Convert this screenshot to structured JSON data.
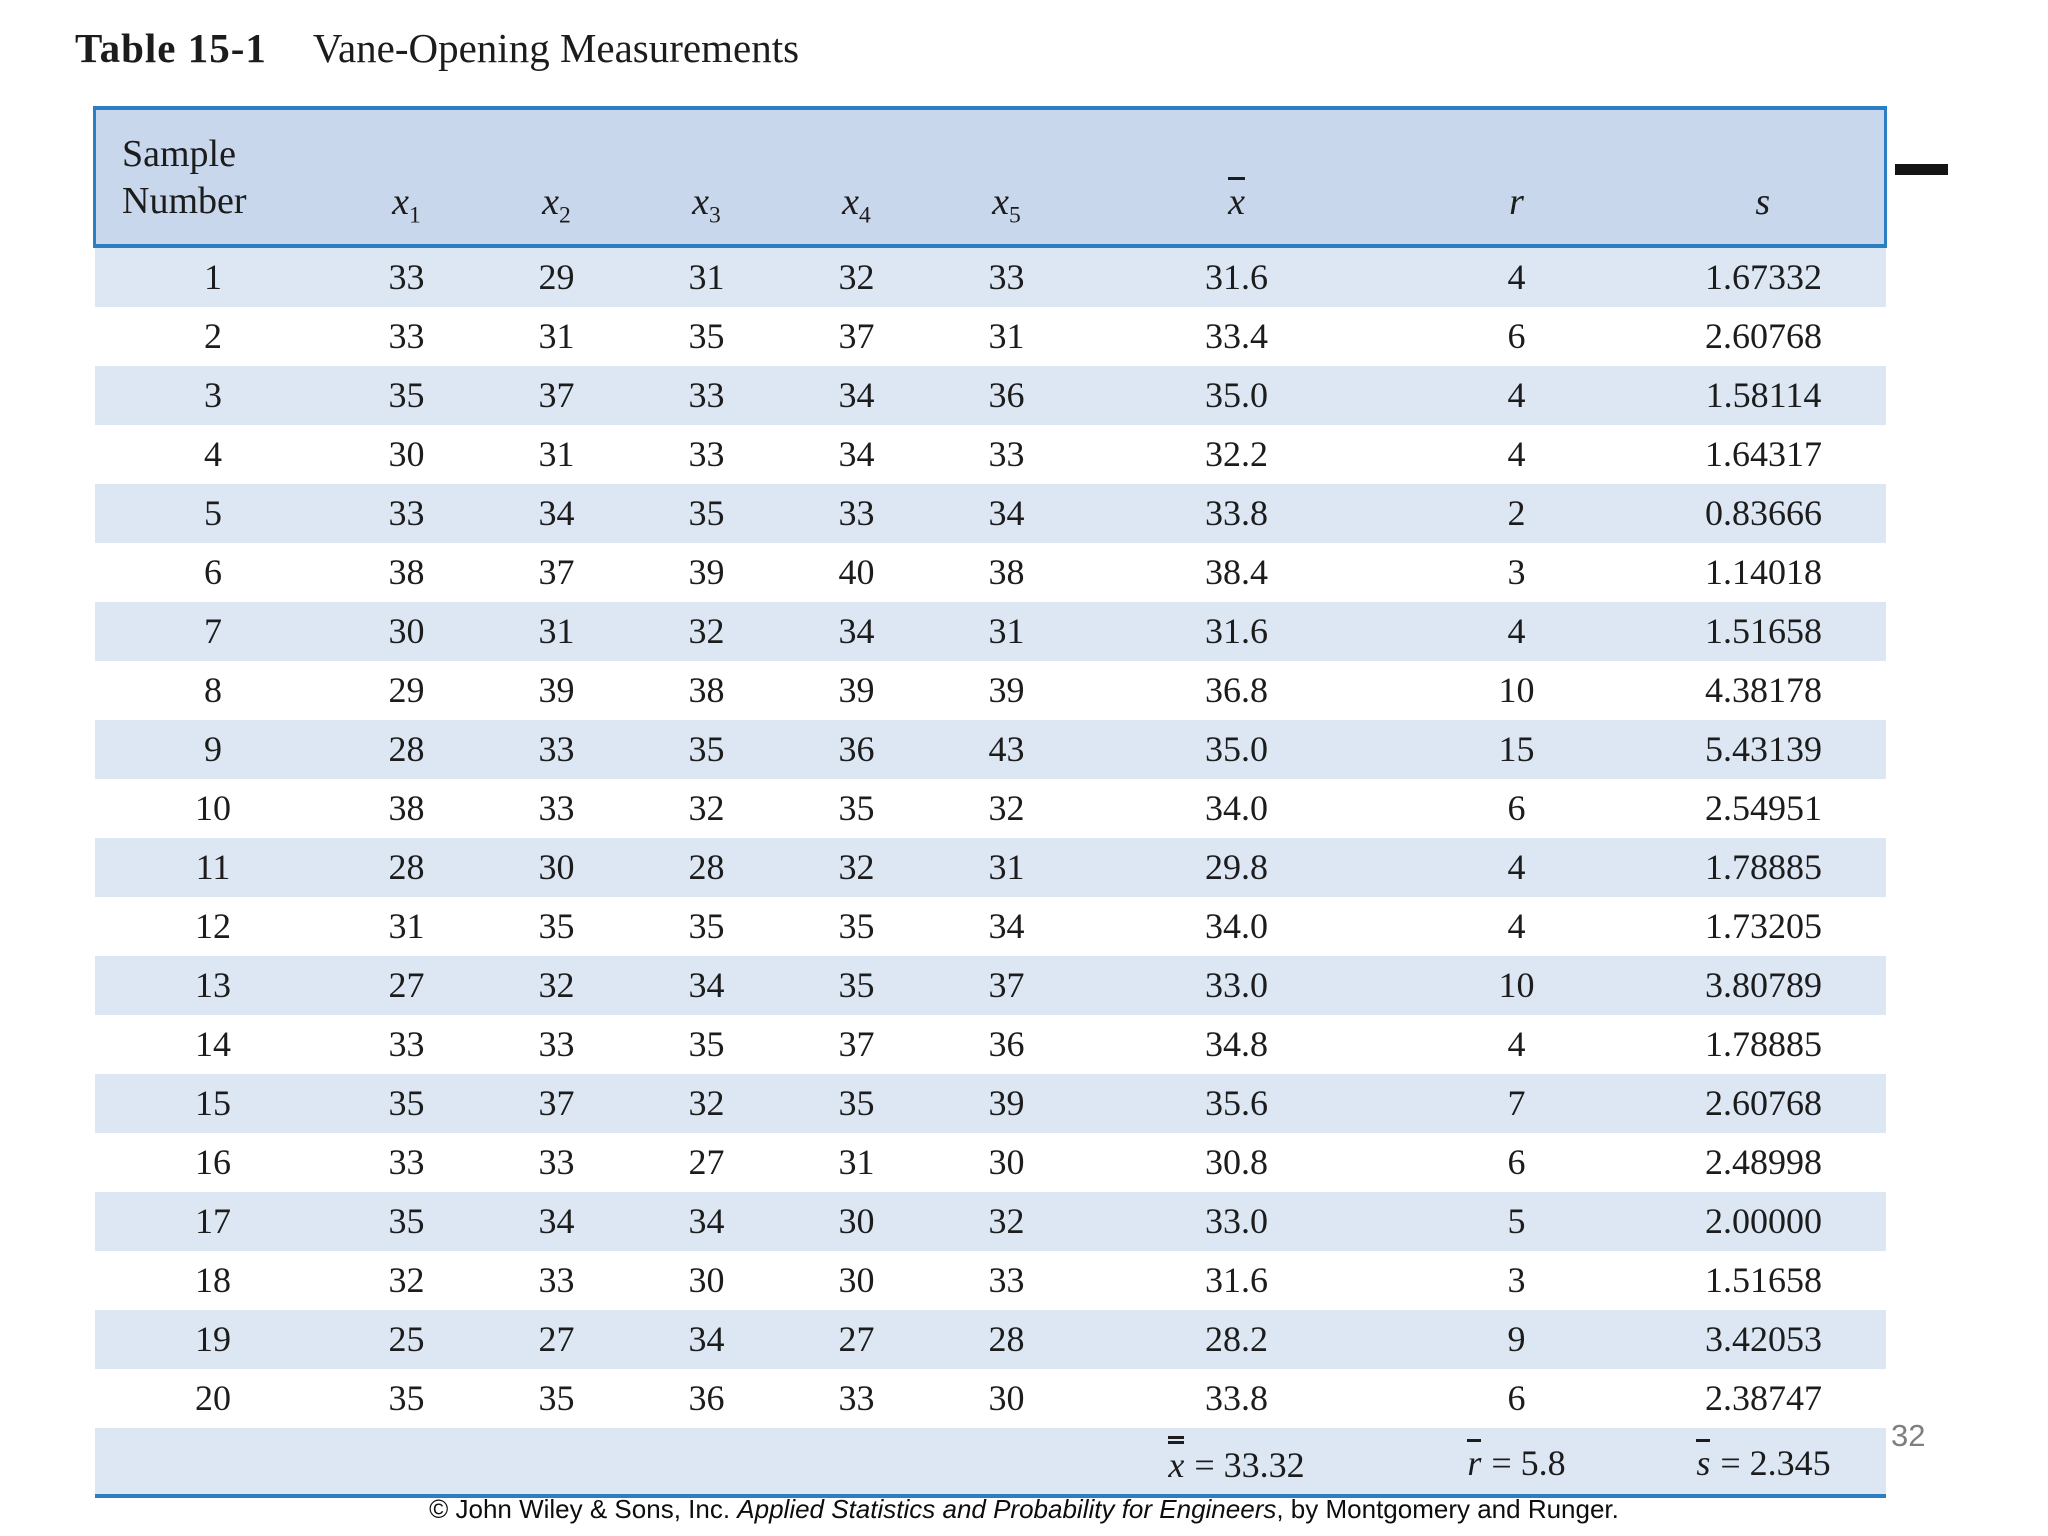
{
  "title": {
    "label": "Table 15-1",
    "caption": "Vane-Opening Measurements"
  },
  "icons": {
    "dash_bullet": "black horizontal bar (list dash marker)"
  },
  "colors": {
    "border_blue": "#2b7ec1",
    "header_bg": "#c9d7ec",
    "row_alt_bg": "#dde7f4"
  },
  "table": {
    "header": {
      "sample_line1": "Sample",
      "sample_line2": "Number",
      "xcols": [
        {
          "base": "x",
          "sub": "1"
        },
        {
          "base": "x",
          "sub": "2"
        },
        {
          "base": "x",
          "sub": "3"
        },
        {
          "base": "x",
          "sub": "4"
        },
        {
          "base": "x",
          "sub": "5"
        }
      ],
      "xbar_symbol": "x",
      "r_symbol": "r",
      "s_symbol": "s"
    },
    "rows": [
      [
        "1",
        "33",
        "29",
        "31",
        "32",
        "33",
        "31.6",
        "4",
        "1.67332"
      ],
      [
        "2",
        "33",
        "31",
        "35",
        "37",
        "31",
        "33.4",
        "6",
        "2.60768"
      ],
      [
        "3",
        "35",
        "37",
        "33",
        "34",
        "36",
        "35.0",
        "4",
        "1.58114"
      ],
      [
        "4",
        "30",
        "31",
        "33",
        "34",
        "33",
        "32.2",
        "4",
        "1.64317"
      ],
      [
        "5",
        "33",
        "34",
        "35",
        "33",
        "34",
        "33.8",
        "2",
        "0.83666"
      ],
      [
        "6",
        "38",
        "37",
        "39",
        "40",
        "38",
        "38.4",
        "3",
        "1.14018"
      ],
      [
        "7",
        "30",
        "31",
        "32",
        "34",
        "31",
        "31.6",
        "4",
        "1.51658"
      ],
      [
        "8",
        "29",
        "39",
        "38",
        "39",
        "39",
        "36.8",
        "10",
        "4.38178"
      ],
      [
        "9",
        "28",
        "33",
        "35",
        "36",
        "43",
        "35.0",
        "15",
        "5.43139"
      ],
      [
        "10",
        "38",
        "33",
        "32",
        "35",
        "32",
        "34.0",
        "6",
        "2.54951"
      ],
      [
        "11",
        "28",
        "30",
        "28",
        "32",
        "31",
        "29.8",
        "4",
        "1.78885"
      ],
      [
        "12",
        "31",
        "35",
        "35",
        "35",
        "34",
        "34.0",
        "4",
        "1.73205"
      ],
      [
        "13",
        "27",
        "32",
        "34",
        "35",
        "37",
        "33.0",
        "10",
        "3.80789"
      ],
      [
        "14",
        "33",
        "33",
        "35",
        "37",
        "36",
        "34.8",
        "4",
        "1.78885"
      ],
      [
        "15",
        "35",
        "37",
        "32",
        "35",
        "39",
        "35.6",
        "7",
        "2.60768"
      ],
      [
        "16",
        "33",
        "33",
        "27",
        "31",
        "30",
        "30.8",
        "6",
        "2.48998"
      ],
      [
        "17",
        "35",
        "34",
        "34",
        "30",
        "32",
        "33.0",
        "5",
        "2.00000"
      ],
      [
        "18",
        "32",
        "33",
        "30",
        "30",
        "33",
        "31.6",
        "3",
        "1.51658"
      ],
      [
        "19",
        "25",
        "27",
        "34",
        "27",
        "28",
        "28.2",
        "9",
        "3.42053"
      ],
      [
        "20",
        "35",
        "35",
        "36",
        "33",
        "30",
        "33.8",
        "6",
        "2.38747"
      ]
    ],
    "summary": {
      "xbar": {
        "symbol": "x",
        "value": "= 33.32"
      },
      "rbar": {
        "symbol": "r",
        "value": "= 5.8"
      },
      "sbar": {
        "symbol": "s",
        "value": "= 2.345"
      }
    }
  },
  "footer": {
    "prefix": "© John Wiley & Sons, Inc. ",
    "book_title": "Applied Statistics and Probability for Engineers",
    "suffix": ", by Montgomery and Runger."
  },
  "page_number": "32"
}
